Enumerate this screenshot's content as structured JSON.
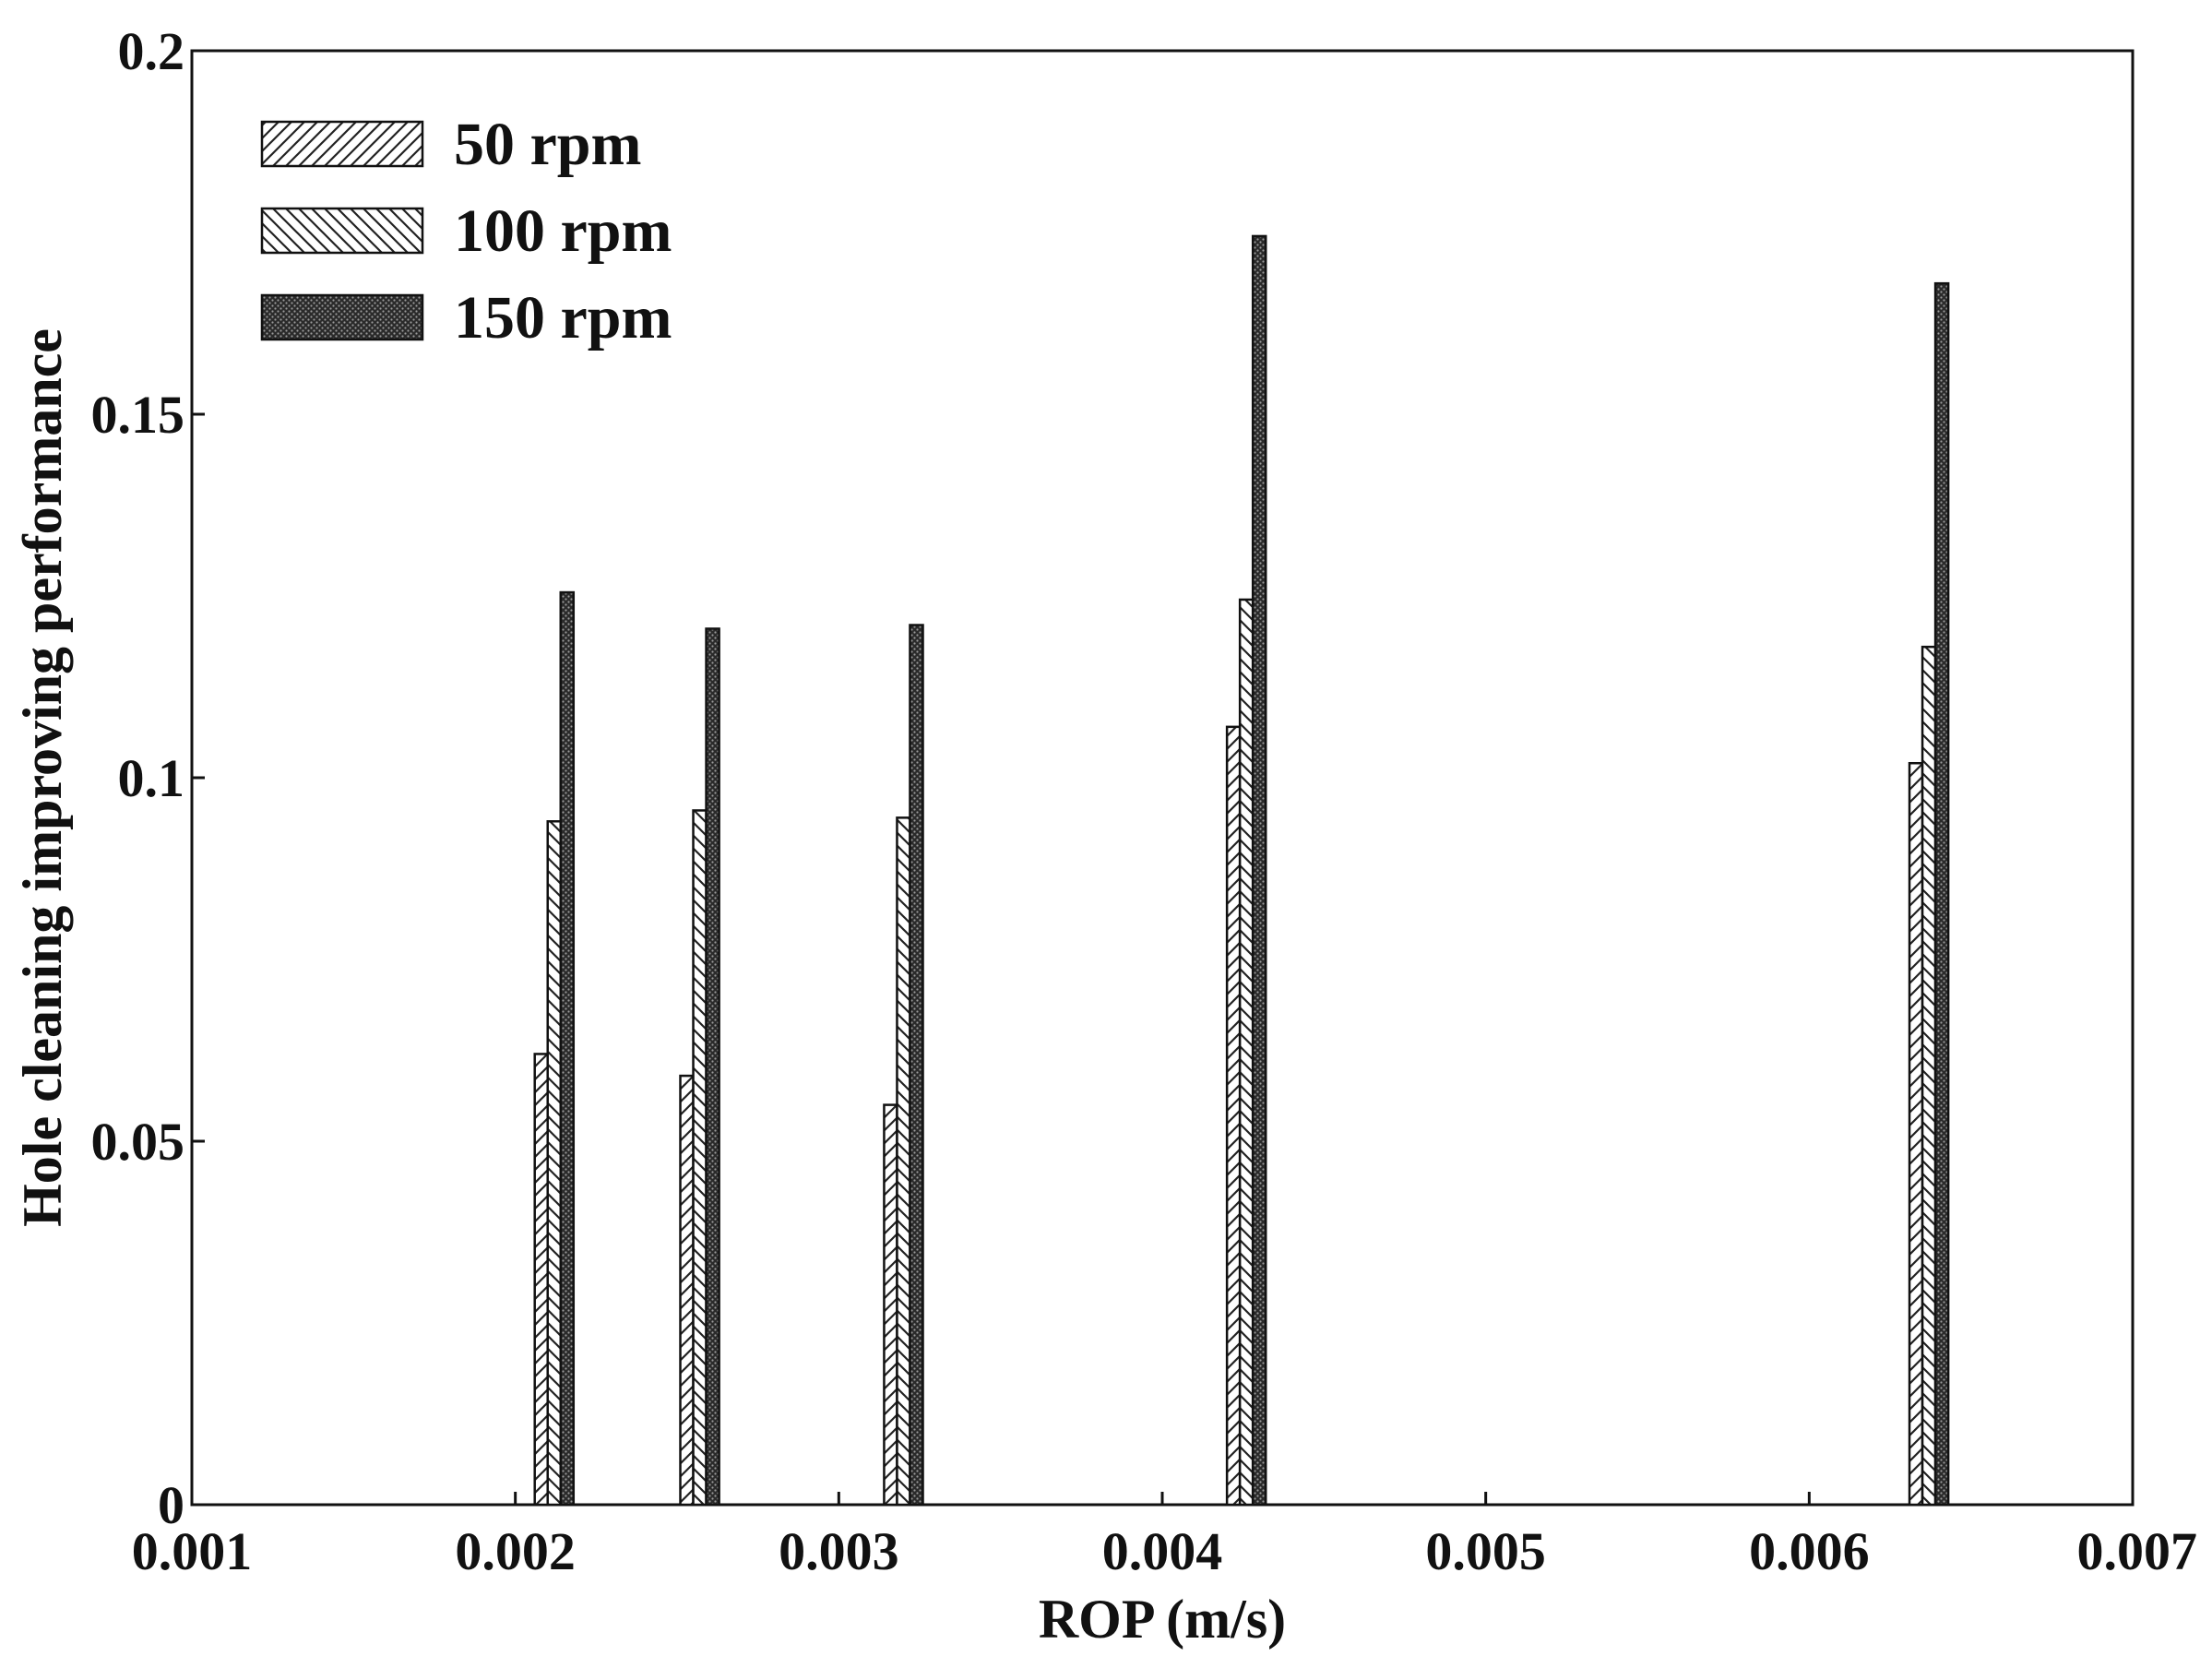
{
  "chart_data": {
    "type": "bar",
    "title": "",
    "xlabel": "ROP (m/s)",
    "ylabel": "Hole cleaning improving performance",
    "xlim": [
      0.001,
      0.007
    ],
    "ylim": [
      0,
      0.2
    ],
    "xticks": [
      0.001,
      0.002,
      0.003,
      0.004,
      0.005,
      0.006,
      0.007
    ],
    "xtick_labels": [
      "0.001",
      "0.002",
      "0.003",
      "0.004",
      "0.005",
      "0.006",
      "0.007"
    ],
    "yticks": [
      0,
      0.05,
      0.1,
      0.15,
      0.2
    ],
    "ytick_labels": [
      "0",
      "0.05",
      "0.1",
      "0.15",
      "0.2"
    ],
    "grid": false,
    "legend_position": "top-left",
    "bar_width": 0.00012,
    "x": [
      0.00212,
      0.00257,
      0.0032,
      0.00426,
      0.00637
    ],
    "series": [
      {
        "name": "50 rpm",
        "pattern": "hatch-forward",
        "values": [
          0.062,
          0.059,
          0.055,
          0.107,
          0.102
        ]
      },
      {
        "name": "100 rpm",
        "pattern": "hatch-backward",
        "values": [
          0.094,
          0.0955,
          0.0945,
          0.1245,
          0.118
        ]
      },
      {
        "name": "150 rpm",
        "pattern": "dense-dark",
        "values": [
          0.1255,
          0.1205,
          0.121,
          0.1745,
          0.168
        ]
      }
    ]
  }
}
